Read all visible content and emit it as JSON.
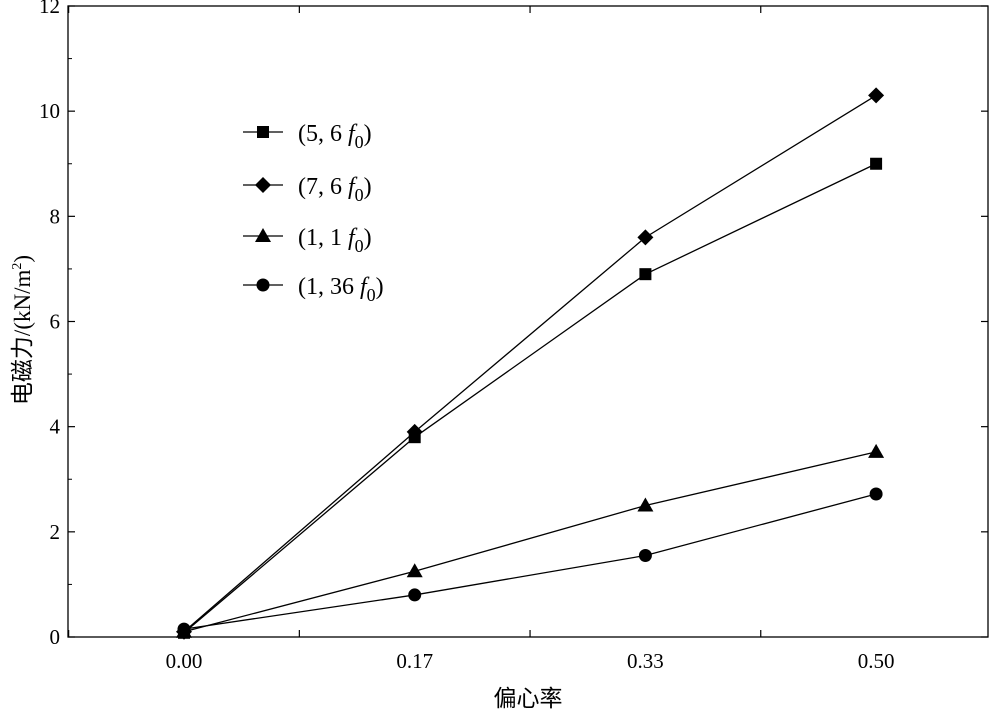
{
  "chart_data": {
    "type": "line",
    "title": "",
    "xlabel": "偏心率",
    "ylabel": "电磁力/(kN/m²)",
    "ylabel_parts": {
      "main": "电磁力/(kN/m",
      "sup": "2",
      "end": ")"
    },
    "categories": [
      "0.00",
      "0.17",
      "0.33",
      "0.50"
    ],
    "ylim": [
      0,
      12
    ],
    "yticks": [
      "0",
      "2",
      "4",
      "6",
      "8",
      "10",
      "12"
    ],
    "legend_position": "top-left",
    "grid": false,
    "series": [
      {
        "name": "(5, 6 f0)",
        "label": {
          "pre": "(5, 6 ",
          "var": "f",
          "sub": "0",
          "post": ")"
        },
        "marker": "square",
        "values": [
          0.08,
          3.8,
          6.9,
          9.0
        ]
      },
      {
        "name": "(7, 6 f0)",
        "label": {
          "pre": "(7, 6 ",
          "var": "f",
          "sub": "0",
          "post": ")"
        },
        "marker": "diamond",
        "values": [
          0.1,
          3.9,
          7.6,
          10.3
        ]
      },
      {
        "name": "(1, 1 f0)",
        "label": {
          "pre": "(1, 1 ",
          "var": "f",
          "sub": "0",
          "post": ")"
        },
        "marker": "triangle",
        "values": [
          0.1,
          1.25,
          2.5,
          3.52
        ]
      },
      {
        "name": "(1, 36 f0)",
        "label": {
          "pre": "(1, 36 ",
          "var": "f",
          "sub": "0",
          "post": ")"
        },
        "marker": "circle",
        "values": [
          0.15,
          0.8,
          1.55,
          2.72
        ]
      }
    ],
    "color": "#000000"
  }
}
